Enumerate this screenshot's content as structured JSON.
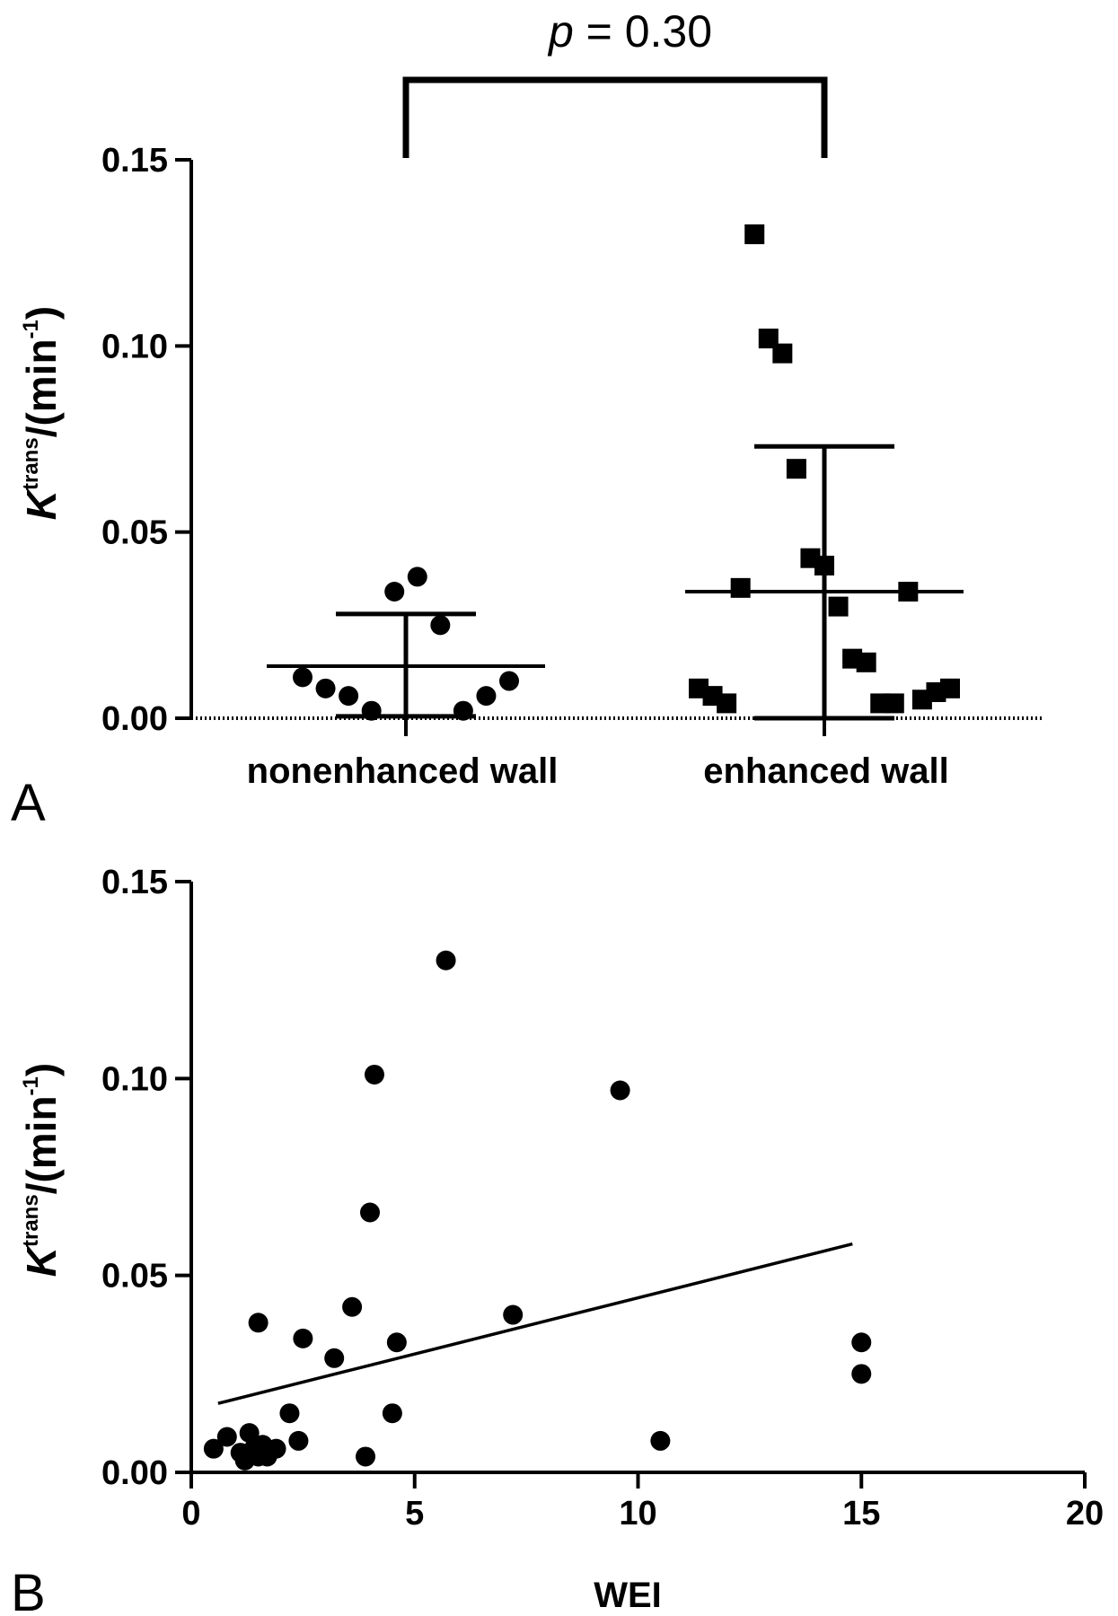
{
  "chart_data": [
    {
      "panel": "A",
      "type": "scatter",
      "categories": [
        "nonenhanced wall",
        "enhanced wall"
      ],
      "ylabel": {
        "main": "K",
        "sup": "trans",
        "unit": "/(min",
        "unit_sup": "-1",
        "close": ")"
      },
      "ylim": [
        0,
        0.15
      ],
      "yticks": [
        "0.00",
        "0.05",
        "0.10",
        "0.15"
      ],
      "groups": [
        {
          "name": "nonenhanced wall",
          "marker": "circle",
          "values": [
            0.011,
            0.008,
            0.006,
            0.002,
            0.034,
            0.038,
            0.025,
            0.002,
            0.006,
            0.01
          ],
          "mean": 0.014,
          "sd_upper": 0.028,
          "sd_lower": 0.0005
        },
        {
          "name": "enhanced wall",
          "marker": "square",
          "values": [
            0.008,
            0.006,
            0.004,
            0.035,
            0.13,
            0.102,
            0.098,
            0.067,
            0.043,
            0.041,
            0.03,
            0.016,
            0.015,
            0.004,
            0.004,
            0.034,
            0.005,
            0.007,
            0.008
          ],
          "mean": 0.034,
          "sd_upper": 0.073,
          "sd_lower": 0.0
        }
      ],
      "annotation": {
        "p_symbol": "p",
        "p_rest": " = 0.30"
      }
    },
    {
      "panel": "B",
      "type": "scatter",
      "xlabel": "WEI",
      "ylabel": {
        "main": "K",
        "sup": "trans",
        "unit": "/(min",
        "unit_sup": "-1",
        "close": ")"
      },
      "xlim": [
        0,
        20
      ],
      "ylim": [
        0,
        0.15
      ],
      "xticks": [
        "0",
        "5",
        "10",
        "15",
        "20"
      ],
      "yticks": [
        "0.00",
        "0.05",
        "0.10",
        "0.15"
      ],
      "points": [
        [
          0.5,
          0.006
        ],
        [
          0.8,
          0.009
        ],
        [
          1.1,
          0.005
        ],
        [
          1.2,
          0.003
        ],
        [
          1.3,
          0.01
        ],
        [
          1.4,
          0.006
        ],
        [
          1.5,
          0.004
        ],
        [
          1.6,
          0.007
        ],
        [
          1.7,
          0.004
        ],
        [
          1.9,
          0.006
        ],
        [
          1.5,
          0.038
        ],
        [
          2.2,
          0.015
        ],
        [
          2.4,
          0.008
        ],
        [
          2.5,
          0.034
        ],
        [
          3.2,
          0.029
        ],
        [
          3.6,
          0.042
        ],
        [
          3.9,
          0.004
        ],
        [
          4.0,
          0.066
        ],
        [
          4.1,
          0.101
        ],
        [
          4.5,
          0.015
        ],
        [
          4.6,
          0.033
        ],
        [
          5.7,
          0.13
        ],
        [
          7.2,
          0.04
        ],
        [
          9.6,
          0.097
        ],
        [
          10.5,
          0.008
        ],
        [
          15.0,
          0.033
        ],
        [
          15.0,
          0.025
        ]
      ],
      "fit_line": {
        "x": [
          0.6,
          14.8
        ],
        "y": [
          0.0175,
          0.058
        ]
      }
    }
  ]
}
